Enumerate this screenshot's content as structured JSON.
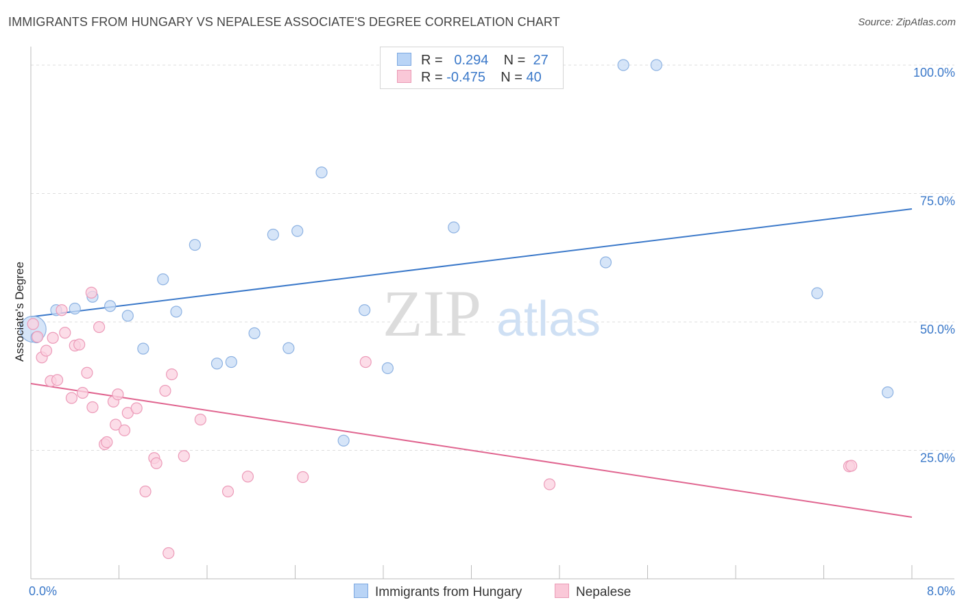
{
  "title": "IMMIGRANTS FROM HUNGARY VS NEPALESE ASSOCIATE'S DEGREE CORRELATION CHART",
  "source": "Source: ZipAtlas.com",
  "watermark": {
    "zip": "ZIP",
    "atlas": "atlas"
  },
  "legend": {
    "r_label": "R =",
    "n_label": "N =",
    "rows": [
      {
        "r": "0.294",
        "n": "27",
        "fill": "#b9d4f6",
        "stroke": "#7ba7e0"
      },
      {
        "r": "-0.475",
        "n": "40",
        "fill": "#fac8d8",
        "stroke": "#ea9ab5"
      }
    ]
  },
  "bottom_legend": [
    "Immigrants from Hungary",
    "Nepalese"
  ],
  "chart_data": {
    "type": "scatter",
    "title": "IMMIGRANTS FROM HUNGARY VS NEPALESE ASSOCIATE'S DEGREE CORRELATION CHART",
    "xlabel": "",
    "ylabel": "Associate's Degree",
    "xlim": [
      0,
      8
    ],
    "ylim": [
      0,
      102
    ],
    "x_tick_labels": [
      "0.0%",
      "8.0%"
    ],
    "y_ticks": [
      25,
      50,
      75,
      100
    ],
    "y_tick_labels": [
      "25.0%",
      "50.0%",
      "75.0%",
      "100.0%"
    ],
    "grid": true,
    "legend_position": "top-center",
    "series": [
      {
        "name": "Immigrants from Hungary",
        "color": "#3a78c9",
        "marker_fill": "#c8dcf5",
        "marker_stroke": "#8db2e2",
        "points": [
          [
            0.02,
            48.6,
            "large"
          ],
          [
            0.05,
            47.0
          ],
          [
            0.23,
            52.3
          ],
          [
            0.4,
            52.6
          ],
          [
            0.56,
            54.9
          ],
          [
            0.72,
            53.1
          ],
          [
            0.88,
            51.2
          ],
          [
            1.02,
            44.8
          ],
          [
            1.2,
            58.3
          ],
          [
            1.32,
            52.0
          ],
          [
            1.49,
            65.0
          ],
          [
            1.69,
            41.9
          ],
          [
            1.82,
            42.2
          ],
          [
            2.03,
            47.8
          ],
          [
            2.2,
            67.0
          ],
          [
            2.34,
            44.9
          ],
          [
            2.42,
            67.7
          ],
          [
            2.64,
            79.1
          ],
          [
            2.84,
            26.9
          ],
          [
            3.03,
            52.3
          ],
          [
            3.24,
            41.0
          ],
          [
            3.84,
            68.4
          ],
          [
            5.22,
            61.6
          ],
          [
            5.38,
            100.0
          ],
          [
            5.68,
            100.0
          ],
          [
            7.14,
            55.6
          ],
          [
            7.78,
            36.3
          ]
        ],
        "trend": {
          "x0": 0,
          "y0": 51.0,
          "x1": 8.0,
          "y1": 72.0
        }
      },
      {
        "name": "Nepalese",
        "color": "#e0648f",
        "marker_fill": "#fbd2e0",
        "marker_stroke": "#ec9ab8",
        "points": [
          [
            0.02,
            49.6
          ],
          [
            0.06,
            47.1
          ],
          [
            0.1,
            43.1
          ],
          [
            0.14,
            44.4
          ],
          [
            0.18,
            38.5
          ],
          [
            0.2,
            46.9
          ],
          [
            0.24,
            38.7
          ],
          [
            0.28,
            52.3
          ],
          [
            0.31,
            47.9
          ],
          [
            0.37,
            35.2
          ],
          [
            0.4,
            45.4
          ],
          [
            0.44,
            45.6
          ],
          [
            0.47,
            36.2
          ],
          [
            0.51,
            40.1
          ],
          [
            0.56,
            33.4
          ],
          [
            0.55,
            55.7
          ],
          [
            0.62,
            49.0
          ],
          [
            0.67,
            26.2
          ],
          [
            0.69,
            26.6
          ],
          [
            0.75,
            34.5
          ],
          [
            0.77,
            30.0
          ],
          [
            0.79,
            35.9
          ],
          [
            0.85,
            28.9
          ],
          [
            0.88,
            32.3
          ],
          [
            0.96,
            33.2
          ],
          [
            1.04,
            17.0
          ],
          [
            1.12,
            23.5
          ],
          [
            1.14,
            22.5
          ],
          [
            1.22,
            36.6
          ],
          [
            1.25,
            5.0
          ],
          [
            1.28,
            39.8
          ],
          [
            1.39,
            23.9
          ],
          [
            1.54,
            31.0
          ],
          [
            1.79,
            17.0
          ],
          [
            1.97,
            19.9
          ],
          [
            2.47,
            19.8
          ],
          [
            3.04,
            42.2
          ],
          [
            4.71,
            18.4
          ],
          [
            7.43,
            21.9
          ],
          [
            7.45,
            22.0
          ]
        ],
        "trend": {
          "x0": 0,
          "y0": 38.0,
          "x1": 8.0,
          "y1": 12.0
        }
      }
    ]
  }
}
